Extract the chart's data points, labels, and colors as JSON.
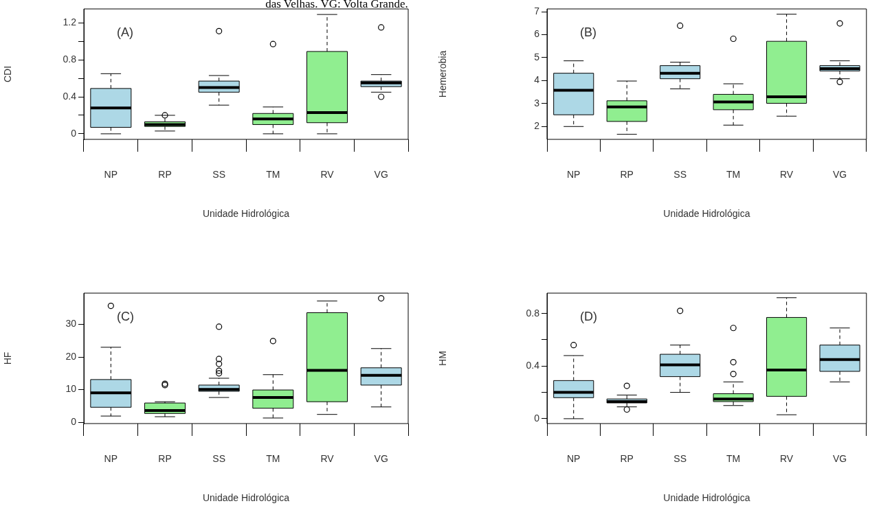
{
  "chart_data": [
    {
      "type": "box",
      "xlabel": "Unidade Hidrológica",
      "ylabel": "CDI",
      "annotations": [
        "(A)",
        "das Velhas. VG: Volta Grande."
      ],
      "categories": [
        "NP",
        "RP",
        "SS",
        "TM",
        "RV",
        "VG"
      ],
      "colors": [
        "#add8e6",
        "#90ee90",
        "#add8e6",
        "#90ee90",
        "#90ee90",
        "#add8e6"
      ],
      "ylim": [
        -0.06,
        1.35
      ],
      "yticks": [
        0,
        {
          "value": 0.2,
          "label": null
        },
        0.4,
        {
          "value": 0.6,
          "label": null
        },
        0.8,
        {
          "value": 1.0,
          "label": null
        },
        1.2
      ],
      "boxes": [
        {
          "low": 0,
          "q1": 0.07,
          "median": 0.28,
          "q3": 0.49,
          "high": 0.65
        },
        {
          "low": 0.03,
          "q1": 0.08,
          "median": 0.1,
          "q3": 0.13,
          "high": 0.2,
          "outliers": [
            0.2
          ]
        },
        {
          "low": 0.31,
          "q1": 0.45,
          "median": 0.5,
          "q3": 0.57,
          "high": 0.63,
          "outliers": [
            1.11
          ]
        },
        {
          "low": 0,
          "q1": 0.1,
          "median": 0.16,
          "q3": 0.22,
          "high": 0.29,
          "outliers": [
            0.97
          ]
        },
        {
          "low": 0,
          "q1": 0.12,
          "median": 0.23,
          "q3": 0.89,
          "high": 1.29
        },
        {
          "low": 0.45,
          "q1": 0.51,
          "median": 0.55,
          "q3": 0.57,
          "high": 0.64,
          "outliers": [
            1.15,
            0.4
          ]
        }
      ]
    },
    {
      "type": "box",
      "xlabel": "Unidade Hidrológica",
      "ylabel": "Hemerobia",
      "annotations": [
        "(B)"
      ],
      "categories": [
        "NP",
        "RP",
        "SS",
        "TM",
        "RV",
        "VG"
      ],
      "colors": [
        "#add8e6",
        "#90ee90",
        "#add8e6",
        "#90ee90",
        "#90ee90",
        "#add8e6"
      ],
      "ylim": [
        1.44,
        7.12
      ],
      "yticks": [
        2,
        3,
        4,
        5,
        6,
        7
      ],
      "boxes": [
        {
          "low": 2,
          "q1": 2.51,
          "median": 3.58,
          "q3": 4.32,
          "high": 4.86
        },
        {
          "low": 1.66,
          "q1": 2.22,
          "median": 2.85,
          "q3": 3.12,
          "high": 3.98
        },
        {
          "low": 3.64,
          "q1": 4.08,
          "median": 4.32,
          "q3": 4.65,
          "high": 4.8,
          "outliers": [
            6.39
          ]
        },
        {
          "low": 2.06,
          "q1": 2.73,
          "median": 3.07,
          "q3": 3.4,
          "high": 3.86,
          "outliers": [
            5.82
          ]
        },
        {
          "low": 2.45,
          "q1": 3.01,
          "median": 3.29,
          "q3": 5.71,
          "high": 6.89
        },
        {
          "low": 4.08,
          "q1": 4.42,
          "median": 4.52,
          "q3": 4.65,
          "high": 4.86,
          "outliers": [
            6.49,
            3.94
          ]
        }
      ]
    },
    {
      "type": "box",
      "xlabel": "Unidade Hidrológica",
      "ylabel": "HF",
      "annotations": [
        "(C)"
      ],
      "categories": [
        "NP",
        "RP",
        "SS",
        "TM",
        "RV",
        "VG"
      ],
      "colors": [
        "#add8e6",
        "#90ee90",
        "#add8e6",
        "#90ee90",
        "#90ee90",
        "#add8e6"
      ],
      "ylim": [
        -0.4,
        39.6
      ],
      "yticks": [
        0,
        10,
        20,
        30
      ],
      "boxes": [
        {
          "low": 1.9,
          "q1": 4.6,
          "median": 9,
          "q3": 13.1,
          "high": 23,
          "outliers": [
            35.7
          ]
        },
        {
          "low": 1.7,
          "q1": 2.7,
          "median": 3.6,
          "q3": 5.9,
          "high": 6.3,
          "outliers": [
            11.8,
            11.4
          ]
        },
        {
          "low": 7.6,
          "q1": 9.5,
          "median": 10.1,
          "q3": 11.4,
          "high": 13.5,
          "outliers": [
            29.3,
            19.4,
            17.9,
            15.8,
            15
          ]
        },
        {
          "low": 1.3,
          "q1": 4.3,
          "median": 7.6,
          "q3": 9.9,
          "high": 14.6,
          "outliers": [
            24.9
          ]
        },
        {
          "low": 2.4,
          "q1": 6.3,
          "median": 15.9,
          "q3": 33.6,
          "high": 37.2
        },
        {
          "low": 4.7,
          "q1": 11.4,
          "median": 14.4,
          "q3": 16.7,
          "high": 22.6,
          "outliers": [
            38
          ]
        }
      ]
    },
    {
      "type": "box",
      "xlabel": "Unidade Hidrológica",
      "ylabel": "HM",
      "annotations": [
        "(D)"
      ],
      "categories": [
        "NP",
        "RP",
        "SS",
        "TM",
        "RV",
        "VG"
      ],
      "colors": [
        "#add8e6",
        "#add8e6",
        "#add8e6",
        "#90ee90",
        "#90ee90",
        "#add8e6"
      ],
      "ylim": [
        -0.037,
        0.955
      ],
      "yticks": [
        0,
        {
          "value": 0.2,
          "label": null
        },
        0.4,
        {
          "value": 0.6,
          "label": null
        },
        0.8
      ],
      "boxes": [
        {
          "low": 0,
          "q1": 0.16,
          "median": 0.2,
          "q3": 0.29,
          "high": 0.48,
          "outliers": [
            0.56
          ]
        },
        {
          "low": 0.09,
          "q1": 0.12,
          "median": 0.13,
          "q3": 0.15,
          "high": 0.18,
          "outliers": [
            0.25,
            0.07
          ]
        },
        {
          "low": 0.2,
          "q1": 0.32,
          "median": 0.41,
          "q3": 0.49,
          "high": 0.56,
          "outliers": [
            0.82
          ]
        },
        {
          "low": 0.1,
          "q1": 0.13,
          "median": 0.15,
          "q3": 0.19,
          "high": 0.28,
          "outliers": [
            0.69,
            0.43,
            0.34
          ]
        },
        {
          "low": 0.03,
          "q1": 0.17,
          "median": 0.37,
          "q3": 0.77,
          "high": 0.92
        },
        {
          "low": 0.28,
          "q1": 0.36,
          "median": 0.45,
          "q3": 0.56,
          "high": 0.69
        }
      ]
    }
  ]
}
